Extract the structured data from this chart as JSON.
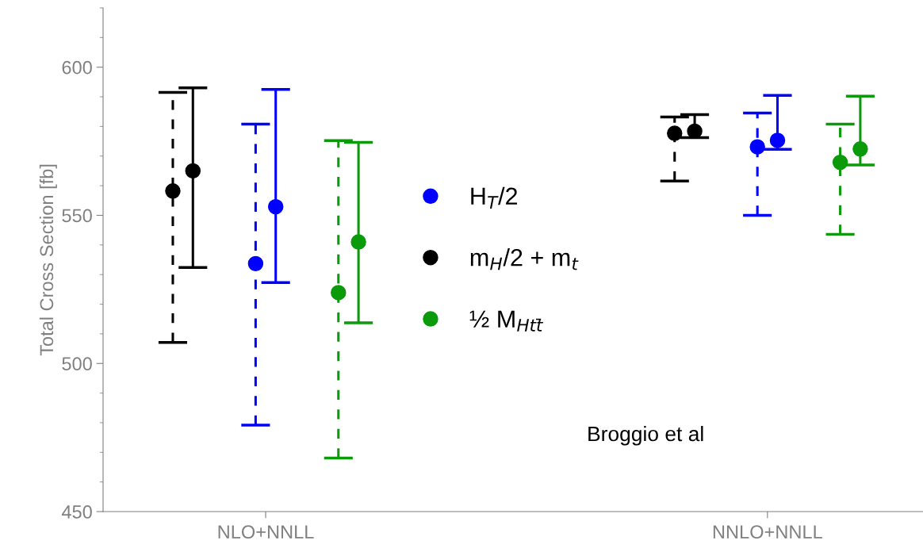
{
  "chart_data": {
    "type": "scatter",
    "ylabel": "Total Cross Section [fb]",
    "categories": [
      "NLO+NNLL",
      "NNLO+NNLL"
    ],
    "series": [
      {
        "name": "m$_{H}$/2 + m$_{t}$",
        "color": "#000000",
        "line_style": "dashed",
        "values": [
          558.2,
          577.7
        ],
        "errors": [
          [
            507.1,
            591.5
          ],
          [
            561.6,
            583.2
          ]
        ]
      },
      {
        "color": "#000000",
        "line_style": "solid",
        "values": [
          565.0,
          578.4
        ],
        "errors": [
          [
            532.4,
            593.0
          ],
          [
            576.2,
            584.0
          ]
        ]
      },
      {
        "name": "H$_{T}$/2",
        "color": "#0000ff",
        "line_style": "dashed",
        "values": [
          533.7,
          573.1
        ],
        "errors": [
          [
            479.2,
            580.8
          ],
          [
            550.0,
            584.5
          ]
        ]
      },
      {
        "color": "#0000ff",
        "line_style": "solid",
        "values": [
          552.9,
          575.3
        ],
        "errors": [
          [
            527.3,
            592.5
          ],
          [
            572.3,
            590.5
          ]
        ]
      },
      {
        "name": "½ M$_{Htt̄}$",
        "color": "#0a9a0a",
        "line_style": "dashed",
        "values": [
          523.9,
          567.9
        ],
        "errors": [
          [
            468.1,
            575.2
          ],
          [
            543.6,
            580.8
          ]
        ]
      },
      {
        "color": "#0a9a0a",
        "line_style": "solid",
        "values": [
          541.0,
          572.4
        ],
        "errors": [
          [
            513.7,
            574.6
          ],
          [
            567.0,
            590.2
          ]
        ]
      }
    ],
    "ylim": [
      450,
      620
    ],
    "yticks": [
      450,
      500,
      550,
      600
    ],
    "marker": "circle",
    "legend": "center",
    "grid": false,
    "annotations": [
      "Broggio et al"
    ]
  }
}
